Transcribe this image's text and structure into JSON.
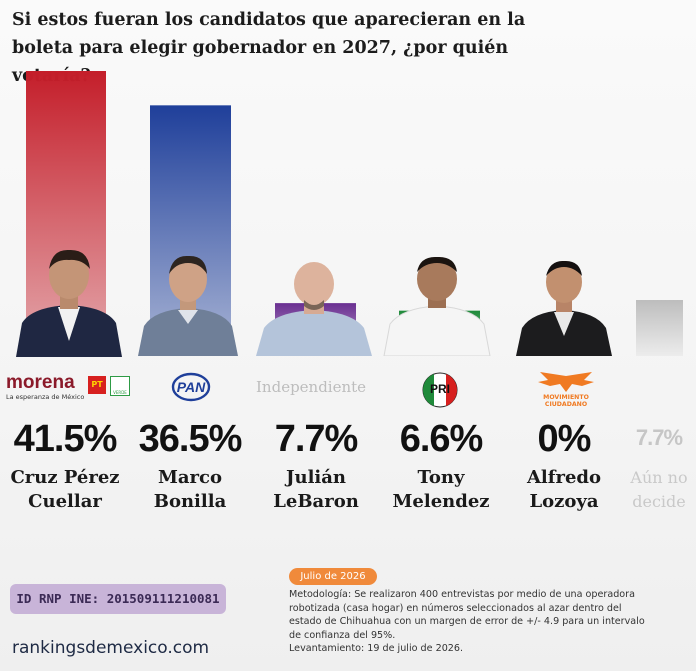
{
  "title_line1": "Si estos fueran los candidatos que aparecieran en la",
  "title_line2": "boleta para elegir gobernador en 2027, ¿por quién votaría?",
  "chart_data": {
    "type": "bar",
    "title": "Si estos fueran los candidatos que aparecieran en la boleta para elegir gobernador en 2027, ¿por quién votaría?",
    "categories": [
      "Cruz Pérez Cuellar",
      "Marco Bonilla",
      "Julián LeBaron",
      "Tony Melendez",
      "Alfredo Lozoya",
      "Aún no decide"
    ],
    "values": [
      41.5,
      36.5,
      7.7,
      6.6,
      0,
      7.7
    ],
    "ylim": [
      0,
      41.5
    ],
    "grid": false,
    "colors": [
      "#c41e2a",
      "#1f3f9a",
      "#6a2f91",
      "#1f8a3a",
      "#f07a22",
      "#bdbdbd"
    ]
  },
  "bars": [
    {
      "pct": "41.5%",
      "name1": "Cruz Pérez",
      "name2": "Cuellar",
      "party": "morena"
    },
    {
      "pct": "36.5%",
      "name1": "Marco",
      "name2": "Bonilla",
      "party": "PAN"
    },
    {
      "pct": "7.7%",
      "name1": "Julián",
      "name2": "LeBaron",
      "party": "Independiente"
    },
    {
      "pct": "6.6%",
      "name1": "Tony",
      "name2": "Melendez",
      "party": "PRI"
    },
    {
      "pct": "0%",
      "name1": "Alfredo",
      "name2": "Lozoya",
      "party": "MOVIMIENTO CIUDADANO"
    },
    {
      "pct": "7.7%",
      "name1": "Aún no",
      "name2": "decide",
      "party": ""
    }
  ],
  "party_logos": {
    "morena_word": "morena",
    "morena_tagline": "La esperanza de México",
    "pt": "PT",
    "verde": "VERDE",
    "pan": "PAN",
    "independiente": "Independiente",
    "pri": "PRI",
    "mc": "MOVIMIENTO CIUDADANO"
  },
  "footer": {
    "rnp": "ID RNP INE: 201509111210081",
    "site": "rankingsdemexico.com",
    "date_badge": "Julio de 2026",
    "method_lines": [
      "Metodología: Se realizaron 400 entrevistas por medio de una operadora",
      "robotizada (casa hogar) en números seleccionados al azar dentro del",
      "estado de Chihuahua con un margen de error de +/- 4.9 para un intervalo",
      "de confianza del 95%.",
      "Levantamiento: 19 de julio de 2026."
    ]
  }
}
